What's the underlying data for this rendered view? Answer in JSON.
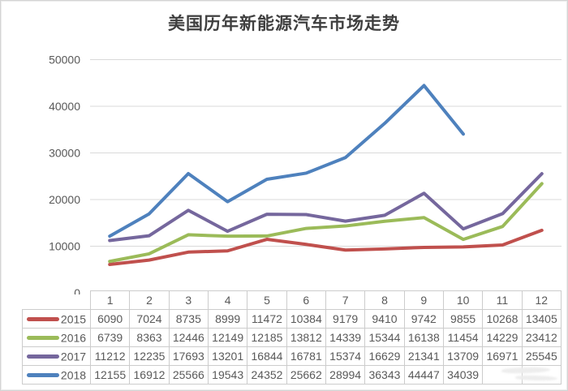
{
  "title": "美国历年新能源汽车市场走势",
  "colors": {
    "series_2015": "#C0504D",
    "series_2016": "#9BBB59",
    "series_2017": "#75679D",
    "series_2018": "#4E81BD",
    "gridline": "#d9d9d9",
    "axis_text": "#595959",
    "table_border": "#cccccc",
    "title_text": "#3f3f3f"
  },
  "chart_data": {
    "type": "line",
    "title": "美国历年新能源汽车市场走势",
    "categories": [
      "1",
      "2",
      "3",
      "4",
      "5",
      "6",
      "7",
      "8",
      "9",
      "10",
      "11",
      "12"
    ],
    "series": [
      {
        "name": "2015",
        "color": "#C0504D",
        "values": [
          6090,
          7024,
          8735,
          8999,
          11472,
          10384,
          9179,
          9410,
          9742,
          9855,
          10268,
          13405
        ]
      },
      {
        "name": "2016",
        "color": "#9BBB59",
        "values": [
          6739,
          8363,
          12446,
          12149,
          12185,
          13812,
          14339,
          15344,
          16138,
          11454,
          14229,
          23412
        ]
      },
      {
        "name": "2017",
        "color": "#75679D",
        "values": [
          11212,
          12235,
          17693,
          13201,
          16844,
          16781,
          15374,
          16629,
          21341,
          13709,
          16971,
          25545
        ]
      },
      {
        "name": "2018",
        "color": "#4E81BD",
        "values": [
          12155,
          16912,
          25566,
          19543,
          24352,
          25662,
          28994,
          36343,
          44447,
          34039,
          null,
          null
        ]
      }
    ],
    "xlabel": "",
    "ylabel": "",
    "ylim": [
      0,
      50000
    ],
    "yticks": [
      0,
      10000,
      20000,
      30000,
      40000,
      50000
    ],
    "grid": true,
    "legend_position": "data-table-left"
  }
}
